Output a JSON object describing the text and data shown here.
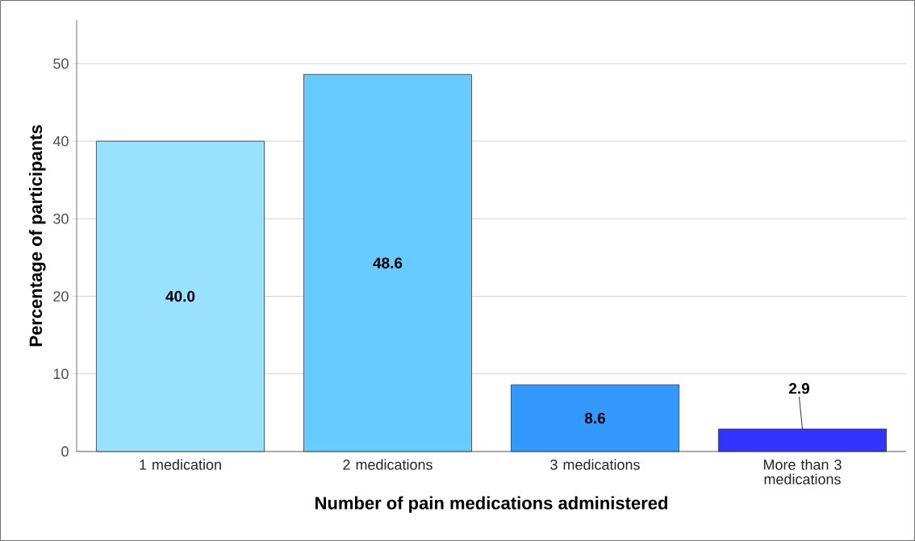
{
  "chart_data": {
    "type": "bar",
    "xlabel": "Number of pain medications administered",
    "ylabel": "Percentage of participants",
    "categories": [
      "1 medication",
      "2 medications",
      "3 medications",
      "More than 3 medications"
    ],
    "values": [
      40.0,
      48.6,
      8.6,
      2.9
    ],
    "value_labels": [
      "40.0",
      "48.6",
      "8.6",
      "2.9"
    ],
    "colors": [
      "#99e2ff",
      "#66ccff",
      "#3399ff",
      "#3333ff"
    ],
    "ylim": [
      0,
      55.6
    ],
    "yticks": [
      0,
      10,
      20,
      30,
      40,
      50
    ],
    "grid": "y"
  }
}
